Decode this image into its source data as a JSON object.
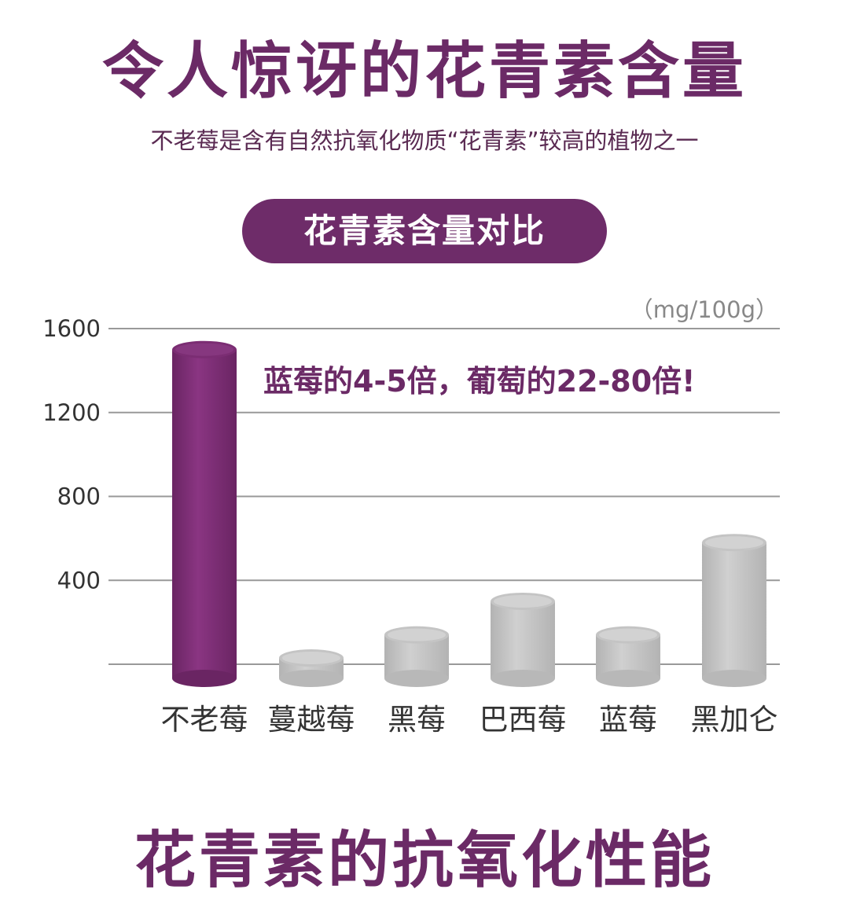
{
  "header": {
    "title": "令人惊讶的花青素含量",
    "subtitle": "不老莓是含有自然抗氧化物质“花青素”较高的植物之一",
    "pill_label": "花青素含量对比"
  },
  "footer": {
    "title": "花青素的抗氧化性能"
  },
  "colors": {
    "accent": "#6e2c69",
    "highlight_bar": "#7b2d73",
    "other_bars": "#c4c4c4",
    "text_dark": "#333333"
  },
  "chart_data": {
    "type": "bar",
    "categories": [
      "不老莓",
      "蔓越莓",
      "黑莓",
      "巴西莓",
      "蓝莓",
      "黑加仑"
    ],
    "values": [
      1500,
      30,
      140,
      300,
      140,
      580
    ],
    "unit": "（mg/100g）",
    "annotation": "蓝莓的4-5倍，葡萄的22-80倍!",
    "yticks": [
      400,
      800,
      1200,
      1600
    ],
    "ylim": [
      0,
      1600
    ],
    "grid": true,
    "highlight_index": 0
  }
}
